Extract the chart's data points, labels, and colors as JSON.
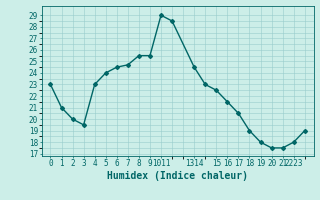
{
  "x": [
    0,
    1,
    2,
    3,
    4,
    5,
    6,
    7,
    8,
    9,
    10,
    11,
    13,
    14,
    15,
    16,
    17,
    18,
    19,
    20,
    21,
    22,
    23
  ],
  "y": [
    23,
    21,
    20,
    19.5,
    23,
    24,
    24.5,
    24.7,
    25.5,
    25.5,
    29,
    28.5,
    24.5,
    23,
    22.5,
    21.5,
    20.5,
    19,
    18,
    17.5,
    17.5,
    18,
    19
  ],
  "line_color": "#006666",
  "marker": "D",
  "marker_size": 2.0,
  "bg_color": "#cceee8",
  "grid_color": "#99cccc",
  "xlabel": "Humidex (Indice chaleur)",
  "xlabel_fontsize": 7,
  "yticks": [
    17,
    18,
    19,
    20,
    21,
    22,
    23,
    24,
    25,
    26,
    27,
    28,
    29
  ],
  "ylim": [
    16.8,
    29.8
  ],
  "xlim": [
    -0.8,
    23.8
  ],
  "tick_fontsize": 5.5,
  "line_width": 1.0
}
